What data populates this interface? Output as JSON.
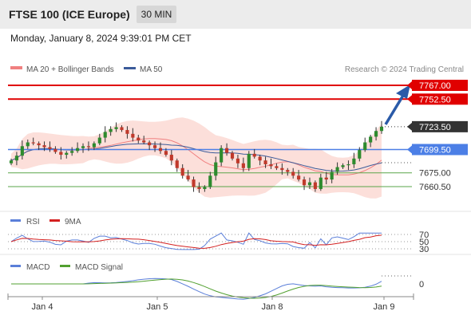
{
  "header": {
    "title": "FTSE 100 (ICE Europe)",
    "interval": "30 MIN",
    "datetime": "Monday, January 8, 2024 9:39:01 PM CET"
  },
  "legend": {
    "ma20": "MA 20 + Bollinger Bands",
    "ma50": "MA 50",
    "credit": "Research © 2024 Trading Central",
    "rsi": "RSI",
    "rsi_ma": "9MA",
    "macd": "MACD",
    "macd_signal": "MACD Signal"
  },
  "colors": {
    "resistance": "#e00000",
    "current": "#333333",
    "pivot": "#4c7fe6",
    "support": "#5aa64a",
    "bull": "#2e8b2e",
    "bear": "#c0392b",
    "bollinger": "#fcd9d4",
    "ma20": "#f08080",
    "ma50": "#3b5b9a",
    "rsi": "#5b7fd9",
    "rsi_ma": "#d42020",
    "macd": "#5b7fd9",
    "macd_signal": "#52a030",
    "arrow": "#2a5aa8"
  },
  "chart_data": {
    "type": "candlestick",
    "x_ticks": [
      "Jan 4",
      "Jan 5",
      "Jan 8",
      "Jan 9"
    ],
    "ylim": [
      7625,
      7782
    ],
    "levels": [
      {
        "label": "7767.00",
        "value": 7767.0,
        "kind": "resistance"
      },
      {
        "label": "7752.50",
        "value": 7752.5,
        "kind": "resistance"
      },
      {
        "label": "7723.50",
        "value": 7723.5,
        "kind": "current"
      },
      {
        "label": "7699.50",
        "value": 7699.5,
        "kind": "pivot"
      },
      {
        "label": "7675.00",
        "value": 7675.0,
        "kind": "support"
      },
      {
        "label": "7660.50",
        "value": 7660.5,
        "kind": "support"
      }
    ],
    "close": [
      7688,
      7693,
      7703,
      7707,
      7706,
      7704,
      7702,
      7700,
      7697,
      7694,
      7696,
      7698,
      7701,
      7703,
      7702,
      7706,
      7712,
      7718,
      7721,
      7723,
      7720,
      7716,
      7712,
      7709,
      7707,
      7704,
      7701,
      7698,
      7694,
      7688,
      7680,
      7672,
      7668,
      7660,
      7658,
      7660,
      7672,
      7686,
      7701,
      7696,
      7690,
      7685,
      7680,
      7695,
      7692,
      7688,
      7684,
      7682,
      7680,
      7678,
      7676,
      7672,
      7668,
      7662,
      7665,
      7658,
      7670,
      7668,
      7676,
      7681,
      7683,
      7684,
      7690,
      7699,
      7707,
      7713,
      7719,
      7723.5
    ],
    "rsi_levels": [
      70,
      50,
      30
    ],
    "macd_zero": 0
  }
}
